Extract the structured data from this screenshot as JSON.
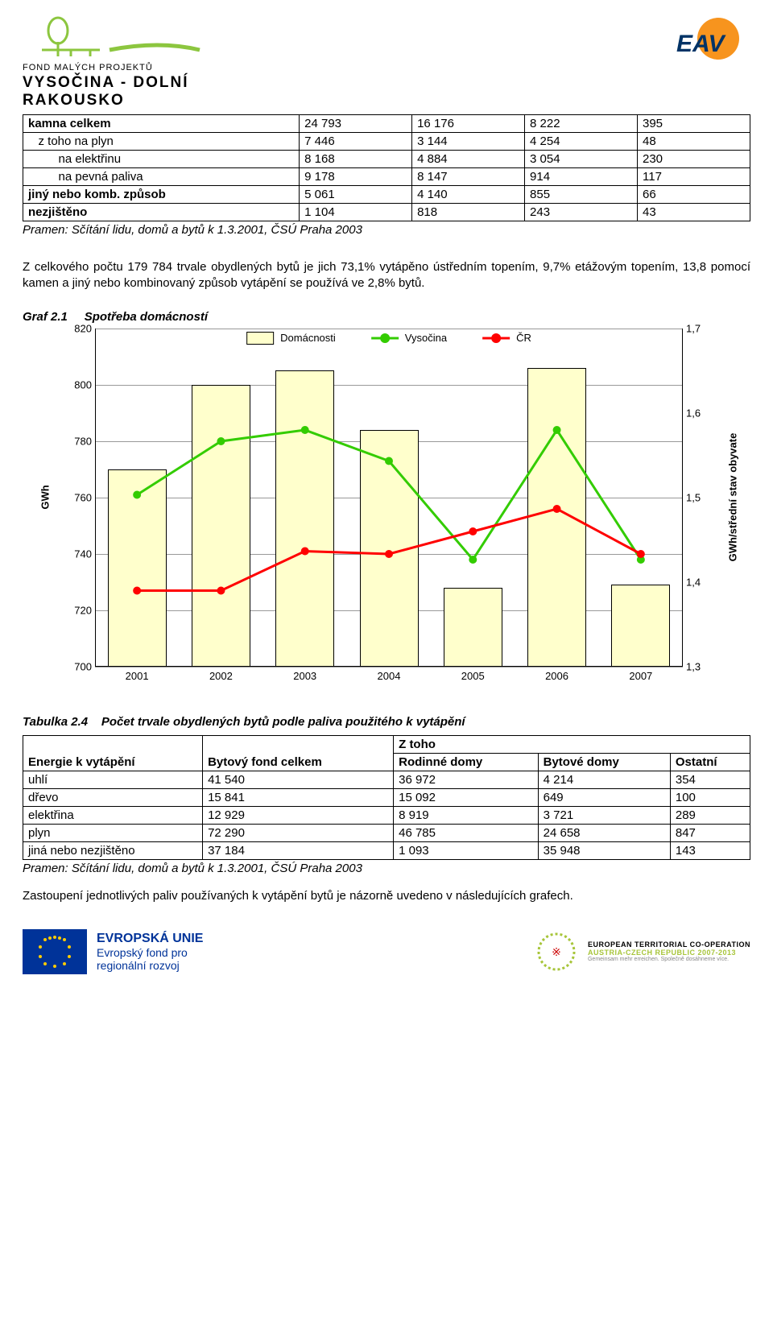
{
  "header": {
    "logo_left_top": "FOND MALÝCH PROJEKTŮ",
    "logo_left_bottom": "VYSOČINA - DOLNÍ RAKOUSKO",
    "logo_right": "EAV",
    "logo_left_accent": "#8cc63f",
    "logo_right_accent": "#f7941e"
  },
  "table1": {
    "rows": [
      {
        "label": "kamna celkem",
        "c": [
          "24 793",
          "16 176",
          "8 222",
          "395"
        ],
        "bold": true
      },
      {
        "label": "z toho na plyn",
        "c": [
          "7 446",
          "3 144",
          "4 254",
          "48"
        ],
        "indent": 1
      },
      {
        "label": "na elektřinu",
        "c": [
          "8 168",
          "4 884",
          "3 054",
          "230"
        ],
        "indent": 2
      },
      {
        "label": "na pevná paliva",
        "c": [
          "9 178",
          "8 147",
          "914",
          "117"
        ],
        "indent": 2
      },
      {
        "label": "jiný nebo komb. způsob",
        "c": [
          "5 061",
          "4 140",
          "855",
          "66"
        ],
        "bold": true
      },
      {
        "label": "nezjištěno",
        "c": [
          "1 104",
          "818",
          "243",
          "43"
        ],
        "bold": true
      }
    ],
    "caption": "Pramen: Sčítání lidu, domů a bytů k 1.3.2001, ČSÚ Praha 2003"
  },
  "paragraph": "Z celkového počtu 179 784 trvale obydlených bytů je jich 73,1% vytápěno ústředním topením, 9,7% etážovým topením, 13,8 pomocí kamen a jiný nebo kombinovaný způsob vytápění se používá ve 2,8% bytů.",
  "chart": {
    "title_prefix": "Graf 2.1",
    "title": "Spotřeba domácností",
    "type": "combo-bar-line",
    "x_categories": [
      "2001",
      "2002",
      "2003",
      "2004",
      "2005",
      "2006",
      "2007"
    ],
    "bars": {
      "label": "Domácnosti",
      "values": [
        770,
        800,
        805,
        784,
        728,
        806,
        729
      ],
      "fill": "#ffffcc",
      "border": "#000000",
      "width_frac": 0.7
    },
    "line1": {
      "label": "Vysočina",
      "color": "#33cc00",
      "values": [
        761,
        780,
        784,
        773,
        738,
        784,
        738
      ],
      "marker": "circle",
      "marker_size": 10,
      "line_width": 3
    },
    "line2": {
      "label": "ČR",
      "color": "#ff0000",
      "values": [
        727,
        727,
        741,
        740,
        748,
        756,
        740
      ],
      "marker": "circle",
      "marker_size": 10,
      "line_width": 3
    },
    "y_left": {
      "label": "GWh",
      "min": 700,
      "max": 820,
      "step": 20,
      "font_weight": "bold"
    },
    "y_right": {
      "label": "GWh/střední stav obyvate",
      "min": 1.3,
      "max": 1.7,
      "step": 0.1,
      "font_weight": "bold"
    },
    "background": "#ffffff",
    "grid_color": "#999999",
    "x_label_fontsize": 13
  },
  "table2": {
    "title_prefix": "Tabulka 2.4",
    "title": "Počet trvale obydlených bytů podle paliva použitého k vytápění",
    "head": {
      "c0": "Energie k vytápění",
      "c1": "Bytový fond celkem",
      "z_toho": "Z toho",
      "c2": "Rodinné domy",
      "c3": "Bytové domy",
      "c4": "Ostatní"
    },
    "rows": [
      {
        "label": "uhlí",
        "c": [
          "41 540",
          "36 972",
          "4 214",
          "354"
        ]
      },
      {
        "label": "dřevo",
        "c": [
          "15 841",
          "15 092",
          "649",
          "100"
        ]
      },
      {
        "label": "elektřina",
        "c": [
          "12 929",
          "8 919",
          "3 721",
          "289"
        ]
      },
      {
        "label": "plyn",
        "c": [
          "72 290",
          "46 785",
          "24 658",
          "847"
        ]
      },
      {
        "label": "jiná nebo nezjištěno",
        "c": [
          "37 184",
          "1 093",
          "35 948",
          "143"
        ]
      }
    ],
    "caption": "Pramen: Sčítání lidu, domů a bytů k 1.3.2001, ČSÚ Praha 2003"
  },
  "paragraph2": "Zastoupení jednotlivých paliv používaných k vytápění bytů je názorně uvedeno v následujících grafech.",
  "footer": {
    "eu_label1": "EVROPSKÁ UNIE",
    "eu_label2": "Evropský fond pro",
    "eu_label3": "regionální rozvoj",
    "eu_flag_bg": "#003399",
    "eu_flag_star": "#ffcc00",
    "etc_label1": "EUROPEAN TERRITORIAL CO-OPERATION",
    "etc_label2": "AUSTRIA-CZECH REPUBLIC 2007-2013",
    "etc_accent": "#a7c539"
  }
}
